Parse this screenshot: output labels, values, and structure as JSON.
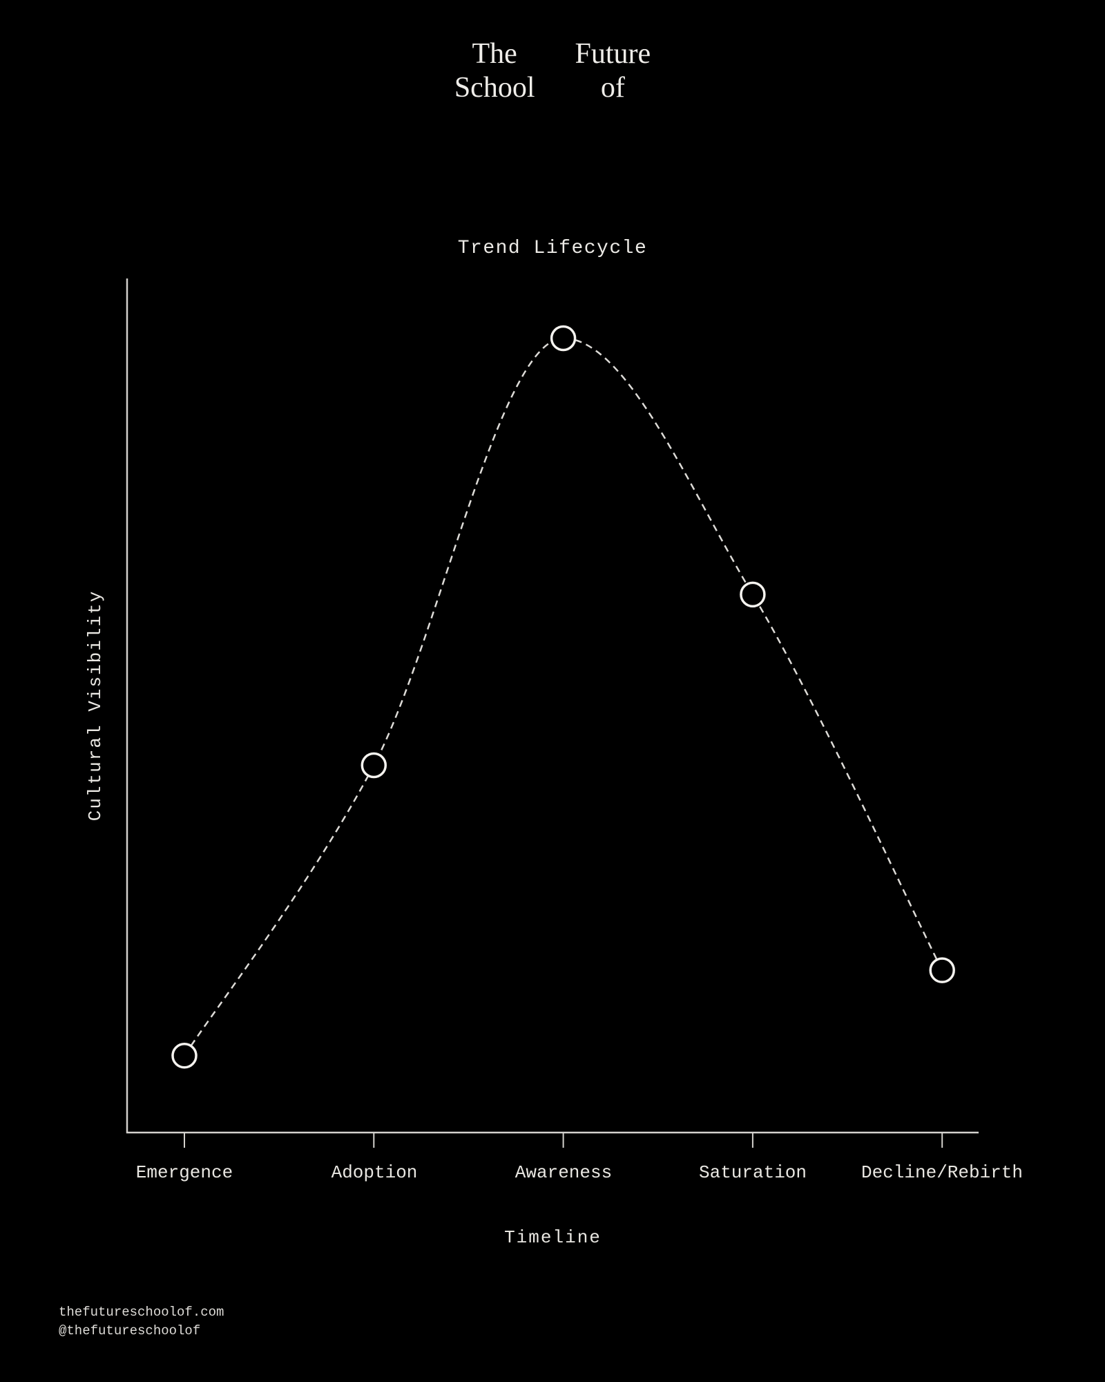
{
  "brand": {
    "name": "The Future School of",
    "words": {
      "top_left": "The",
      "top_right": "Future",
      "bottom_left": "School",
      "bottom_right": "of"
    }
  },
  "chart_data": {
    "type": "line",
    "title": "Trend Lifecycle",
    "xlabel": "Timeline",
    "ylabel": "Cultural Visibility",
    "categories": [
      "Emergence",
      "Adoption",
      "Awareness",
      "Saturation",
      "Decline/Rebirth"
    ],
    "series": [
      {
        "name": "Cultural Visibility",
        "values": [
          0.09,
          0.43,
          0.93,
          0.63,
          0.19
        ]
      }
    ],
    "ylim": [
      0,
      1
    ],
    "legend": "none",
    "grid": false,
    "style": {
      "line_style": "dashed",
      "marker": "open-circle",
      "background_color": "#000000",
      "line_color": "#dddbd7",
      "axis_color": "#d4d2ce",
      "marker_fill": "#000000",
      "marker_stroke": "#f5f3ef"
    }
  },
  "footer": {
    "website": "thefutureschoolof.com",
    "handle": "@thefutureschoolof"
  }
}
